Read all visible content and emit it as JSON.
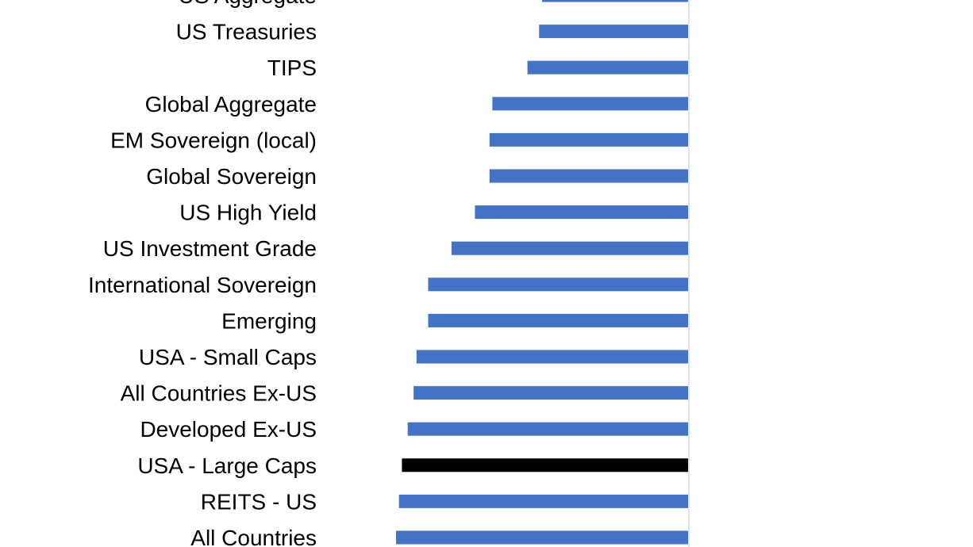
{
  "colors": {
    "bar": "#4472C4",
    "highlight": "#000000",
    "axis": "#D9D9D9",
    "text": "#000000"
  },
  "chart_data": {
    "type": "bar",
    "orientation": "horizontal",
    "title": "",
    "xlabel": "",
    "ylabel": "",
    "grid": false,
    "legend": "none",
    "xlim": [
      -1,
      0
    ],
    "highlight_category": "USA - Large Caps",
    "categories": [
      "US Aggregate",
      "US Treasuries",
      "TIPS",
      "Global Aggregate",
      "EM Sovereign (local)",
      "Global Sovereign",
      "US High Yield",
      "US Investment Grade",
      "International Sovereign",
      "Emerging",
      "USA - Small Caps",
      "All Countries Ex-US",
      "Developed Ex-US",
      "USA - Large Caps",
      "REITS - US",
      "All Countries"
    ],
    "values": [
      -0.5,
      -0.51,
      -0.55,
      -0.67,
      -0.68,
      -0.68,
      -0.73,
      -0.81,
      -0.89,
      -0.89,
      -0.93,
      -0.94,
      -0.96,
      -0.98,
      -0.99,
      -1.0
    ]
  }
}
